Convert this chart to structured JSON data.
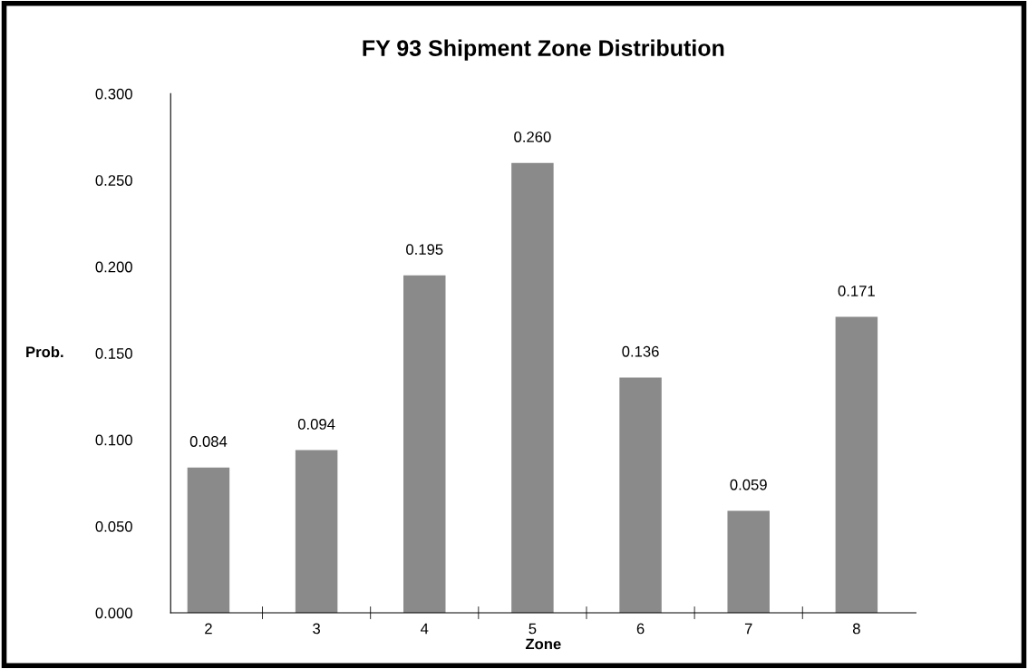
{
  "chart_data": {
    "type": "bar",
    "title": "FY 93 Shipment Zone Distribution",
    "xlabel": "Zone",
    "ylabel": "Prob.",
    "categories": [
      "2",
      "3",
      "4",
      "5",
      "6",
      "7",
      "8"
    ],
    "values": [
      0.084,
      0.094,
      0.195,
      0.26,
      0.136,
      0.059,
      0.171
    ],
    "value_labels": [
      "0.084",
      "0.094",
      "0.195",
      "0.260",
      "0.136",
      "0.059",
      "0.171"
    ],
    "color": "#8a8a8a",
    "ylim": [
      0,
      0.3
    ],
    "yticks": [
      {
        "value": 0,
        "label": "0.000"
      },
      {
        "value": 0.05,
        "label": "0.050"
      },
      {
        "value": 0.1,
        "label": "0.100"
      },
      {
        "value": 0.15,
        "label": "0.150"
      },
      {
        "value": 0.2,
        "label": "0.200"
      },
      {
        "value": 0.25,
        "label": "0.250"
      },
      {
        "value": 0.3,
        "label": "0.300"
      }
    ],
    "grid": false,
    "legend": false
  }
}
